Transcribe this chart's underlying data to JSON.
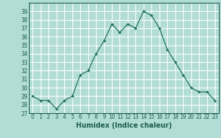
{
  "x": [
    0,
    1,
    2,
    3,
    4,
    5,
    6,
    7,
    8,
    9,
    10,
    11,
    12,
    13,
    14,
    15,
    16,
    17,
    18,
    19,
    20,
    21,
    22,
    23
  ],
  "y": [
    29,
    28.5,
    28.5,
    27.5,
    28.5,
    29,
    31.5,
    32,
    34,
    35.5,
    37.5,
    36.5,
    37.5,
    37,
    39,
    38.5,
    37,
    34.5,
    33,
    31.5,
    30,
    29.5,
    29.5,
    28.5
  ],
  "xlabel": "Humidex (Indice chaleur)",
  "ylim": [
    27,
    40
  ],
  "xlim": [
    -0.5,
    23.5
  ],
  "yticks": [
    27,
    28,
    29,
    30,
    31,
    32,
    33,
    34,
    35,
    36,
    37,
    38,
    39
  ],
  "xticks": [
    0,
    1,
    2,
    3,
    4,
    5,
    6,
    7,
    8,
    9,
    10,
    11,
    12,
    13,
    14,
    15,
    16,
    17,
    18,
    19,
    20,
    21,
    22,
    23
  ],
  "line_color": "#1a6b5a",
  "marker_color": "#1a6b5a",
  "bg_color": "#b2ddd6",
  "grid_major_color": "#ffffff",
  "grid_minor_color": "#c8ece6",
  "label_color": "#1a5c4e",
  "tick_font_size": 5.5,
  "xlabel_font_size": 7.0
}
